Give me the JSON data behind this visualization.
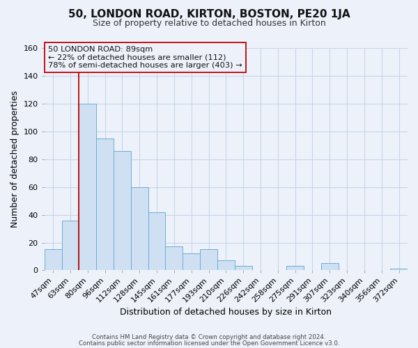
{
  "title": "50, LONDON ROAD, KIRTON, BOSTON, PE20 1JA",
  "subtitle": "Size of property relative to detached houses in Kirton",
  "xlabel": "Distribution of detached houses by size in Kirton",
  "ylabel": "Number of detached properties",
  "bar_labels": [
    "47sqm",
    "63sqm",
    "80sqm",
    "96sqm",
    "112sqm",
    "128sqm",
    "145sqm",
    "161sqm",
    "177sqm",
    "193sqm",
    "210sqm",
    "226sqm",
    "242sqm",
    "258sqm",
    "275sqm",
    "291sqm",
    "307sqm",
    "323sqm",
    "340sqm",
    "356sqm",
    "372sqm"
  ],
  "bar_values": [
    15,
    36,
    120,
    95,
    86,
    60,
    42,
    17,
    12,
    15,
    7,
    3,
    0,
    0,
    3,
    0,
    5,
    0,
    0,
    0,
    1
  ],
  "bar_color": "#cfe0f3",
  "bar_edge_color": "#6aaed6",
  "ylim": [
    0,
    160
  ],
  "yticks": [
    0,
    20,
    40,
    60,
    80,
    100,
    120,
    140,
    160
  ],
  "vline_x": 2.0,
  "vline_color": "#c00000",
  "annotation_title": "50 LONDON ROAD: 89sqm",
  "annotation_line1": "← 22% of detached houses are smaller (112)",
  "annotation_line2": "78% of semi-detached houses are larger (403) →",
  "footer_line1": "Contains HM Land Registry data © Crown copyright and database right 2024.",
  "footer_line2": "Contains public sector information licensed under the Open Government Licence v3.0.",
  "background_color": "#edf2fa",
  "grid_color": "#c8d4e8",
  "title_fontsize": 11,
  "subtitle_fontsize": 9,
  "xlabel_fontsize": 9,
  "ylabel_fontsize": 9,
  "tick_fontsize": 8
}
